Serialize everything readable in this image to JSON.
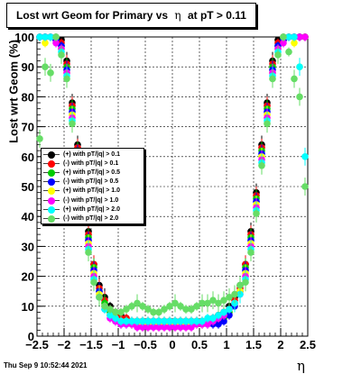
{
  "title": {
    "prefix": "Lost wrt Geom for Primary vs",
    "symbol": "η",
    "suffix": "at pT > 0.11"
  },
  "timestamp": "Thu Sep  9 10:52:44 2021",
  "chart_data": {
    "type": "scatter",
    "ylabel": "Lost wrt Geom (%)",
    "xlabel": "η",
    "xlim": [
      -2.5,
      2.5
    ],
    "ylim": [
      0,
      100
    ],
    "x_ticks": [
      "−2.5",
      "−2",
      "−1.5",
      "−1",
      "−0.5",
      "0",
      "0.5",
      "1",
      "1.5",
      "2",
      "2.5"
    ],
    "y_ticks": [
      "0",
      "10",
      "20",
      "30",
      "40",
      "50",
      "60",
      "70",
      "80",
      "90",
      "100"
    ],
    "grid": true,
    "legend_position": "middle-left",
    "x": [
      -2.45,
      -2.35,
      -2.25,
      -2.15,
      -2.05,
      -1.95,
      -1.85,
      -1.75,
      -1.65,
      -1.55,
      -1.45,
      -1.35,
      -1.25,
      -1.15,
      -1.05,
      -0.95,
      -0.85,
      -0.75,
      -0.65,
      -0.55,
      -0.45,
      -0.35,
      -0.25,
      -0.15,
      -0.05,
      0.05,
      0.15,
      0.25,
      0.35,
      0.45,
      0.55,
      0.65,
      0.75,
      0.85,
      0.95,
      1.05,
      1.15,
      1.25,
      1.35,
      1.45,
      1.55,
      1.65,
      1.75,
      1.85,
      1.95,
      2.05,
      2.15,
      2.25,
      2.35,
      2.45
    ],
    "series": [
      {
        "name": "(+) with pT/|q| > 0.1",
        "color": "#000000",
        "values": [
          100,
          100,
          100,
          100,
          99,
          92,
          78,
          64,
          48,
          35,
          24,
          17,
          13,
          10,
          8,
          7,
          6,
          5,
          5,
          5,
          5,
          5,
          5,
          5,
          5,
          5,
          5,
          5,
          5,
          5,
          5,
          5,
          6,
          7,
          8,
          10,
          13,
          17,
          24,
          35,
          48,
          64,
          78,
          92,
          99,
          100,
          100,
          100,
          100,
          100
        ]
      },
      {
        "name": "(-) with pT/|q| > 0.1",
        "color": "#ff0000",
        "values": [
          100,
          100,
          100,
          100,
          98,
          91,
          77,
          63,
          47,
          34,
          24,
          16,
          12,
          9,
          7,
          6,
          6,
          5,
          5,
          5,
          5,
          5,
          5,
          5,
          5,
          5,
          5,
          5,
          5,
          5,
          5,
          5,
          6,
          6,
          7,
          9,
          12,
          16,
          24,
          34,
          47,
          63,
          77,
          91,
          98,
          100,
          100,
          100,
          100,
          100
        ]
      },
      {
        "name": "(+) with pT/|q| > 0.5",
        "color": "#00cc00",
        "values": [
          100,
          100,
          100,
          99,
          97,
          90,
          76,
          62,
          46,
          33,
          23,
          15,
          11,
          8,
          6,
          5,
          5,
          4,
          4,
          4,
          4,
          4,
          4,
          4,
          4,
          4,
          4,
          4,
          4,
          4,
          4,
          5,
          5,
          5,
          6,
          8,
          11,
          15,
          23,
          33,
          46,
          62,
          76,
          90,
          97,
          99,
          100,
          100,
          100,
          100
        ]
      },
      {
        "name": "(-) with pT/|q| > 0.5",
        "color": "#0000ff",
        "values": [
          100,
          100,
          100,
          99,
          97,
          89,
          75,
          61,
          45,
          32,
          22,
          15,
          10,
          7,
          5,
          4,
          4,
          4,
          4,
          4,
          4,
          4,
          4,
          4,
          4,
          4,
          4,
          4,
          4,
          4,
          4,
          4,
          4,
          4,
          5,
          7,
          10,
          15,
          22,
          32,
          45,
          61,
          75,
          89,
          97,
          99,
          100,
          100,
          100,
          100
        ]
      },
      {
        "name": "(+) with pT/|q| > 1.0",
        "color": "#ffff00",
        "values": [
          100,
          98,
          100,
          100,
          96,
          88,
          74,
          60,
          44,
          31,
          21,
          14,
          10,
          7,
          6,
          5,
          5,
          4,
          4,
          4,
          4,
          4,
          4,
          4,
          4,
          4,
          4,
          4,
          4,
          4,
          4,
          5,
          5,
          6,
          7,
          9,
          11,
          15,
          21,
          31,
          44,
          60,
          74,
          88,
          96,
          100,
          100,
          98,
          90,
          100
        ]
      },
      {
        "name": "(-) with pT/|q| > 1.0",
        "color": "#ff00ff",
        "values": [
          100,
          100,
          100,
          98,
          96,
          88,
          73,
          59,
          43,
          30,
          20,
          13,
          9,
          6,
          5,
          4,
          4,
          4,
          3,
          3,
          3,
          3,
          3,
          3,
          3,
          3,
          3,
          3,
          3,
          4,
          4,
          4,
          5,
          6,
          7,
          9,
          11,
          14,
          20,
          30,
          43,
          59,
          73,
          88,
          96,
          98,
          100,
          100,
          100,
          100
        ]
      },
      {
        "name": "(+) with pT/|q| > 2.0",
        "color": "#00ffff",
        "values": [
          100,
          100,
          100,
          100,
          95,
          87,
          72,
          58,
          42,
          29,
          19,
          13,
          9,
          7,
          6,
          5,
          5,
          5,
          5,
          5,
          5,
          5,
          5,
          5,
          5,
          5,
          5,
          5,
          5,
          5,
          5,
          6,
          6,
          7,
          8,
          9,
          11,
          14,
          19,
          29,
          42,
          58,
          72,
          87,
          95,
          100,
          100,
          100,
          90,
          60
        ]
      },
      {
        "name": "(-) with pT/|q| > 2.0",
        "color": "#66dd66",
        "values": [
          66,
          90,
          88,
          100,
          94,
          86,
          71,
          57,
          41,
          28,
          18,
          13,
          10,
          9,
          8,
          8,
          9,
          10,
          11,
          10,
          9,
          8,
          8,
          9,
          10,
          11,
          10,
          9,
          9,
          10,
          11,
          11,
          12,
          11,
          12,
          13,
          14,
          17,
          18,
          28,
          41,
          57,
          71,
          86,
          94,
          100,
          95,
          86,
          80,
          50
        ]
      }
    ]
  }
}
